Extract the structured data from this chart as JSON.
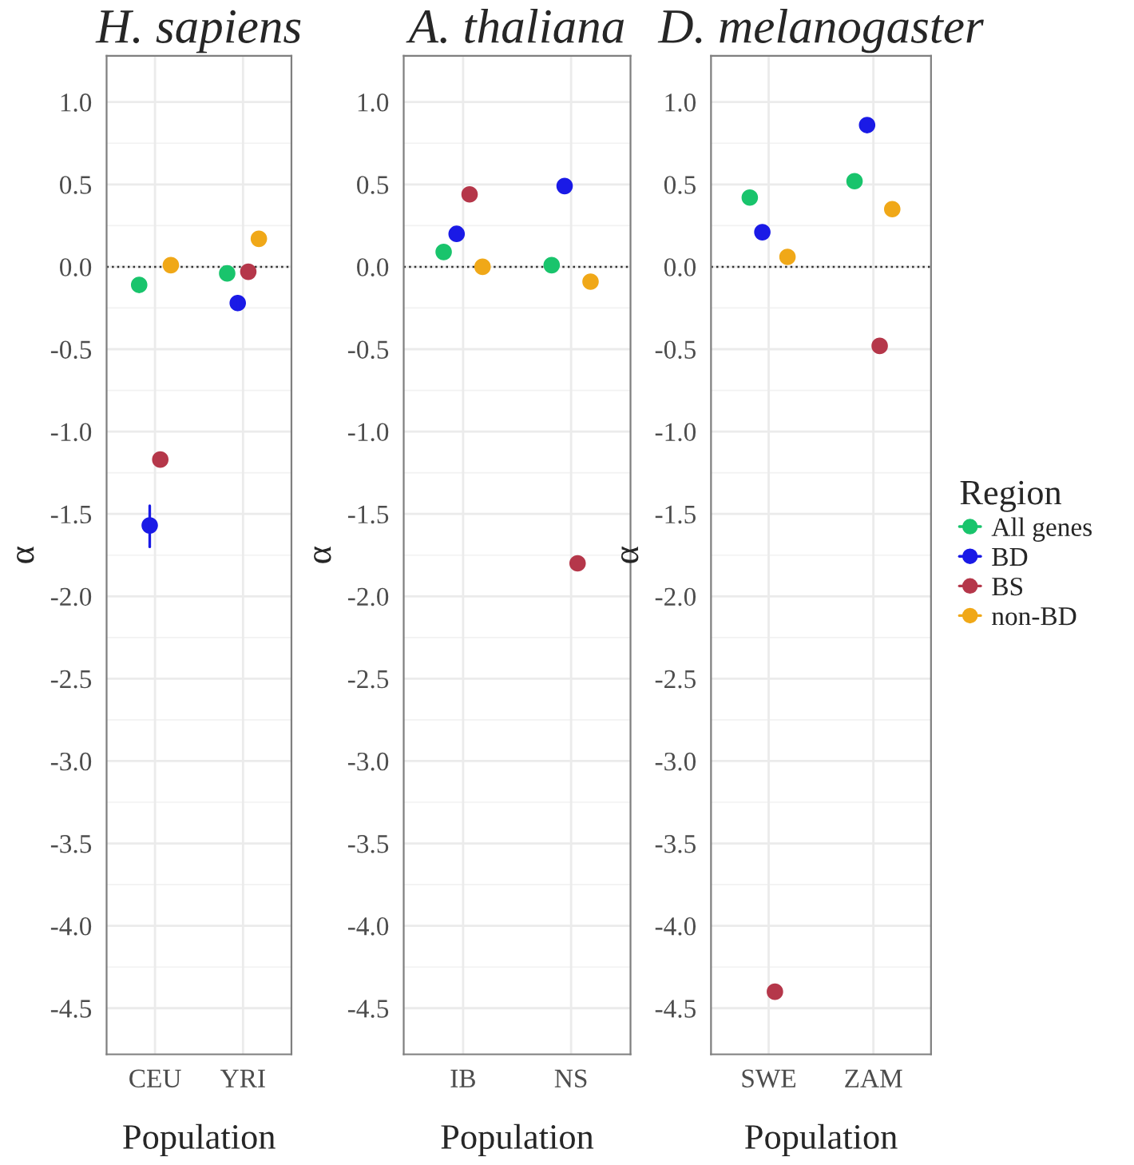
{
  "chart_data": [
    {
      "type": "scatter",
      "title": "H. sapiens",
      "xlabel": "Population",
      "ylabel": "α",
      "categories": [
        "CEU",
        "YRI"
      ],
      "ylim": [
        -4.78,
        1.28
      ],
      "yticks": [
        {
          "value": 1.0,
          "label": "1.0"
        },
        {
          "value": 0.5,
          "label": "0.5"
        },
        {
          "value": 0.0,
          "label": "0.0"
        },
        {
          "value": -0.5,
          "label": "-0.5"
        },
        {
          "value": -1.0,
          "label": "-1.0"
        },
        {
          "value": -1.5,
          "label": "-1.5"
        },
        {
          "value": -2.0,
          "label": "-2.0"
        },
        {
          "value": -2.5,
          "label": "-2.5"
        },
        {
          "value": -3.0,
          "label": "-3.0"
        },
        {
          "value": -3.5,
          "label": "-3.5"
        },
        {
          "value": -4.0,
          "label": "-4.0"
        },
        {
          "value": -4.5,
          "label": "-4.5"
        }
      ],
      "grid": true,
      "marker": "circle",
      "ref_lines": [
        {
          "axis": "y",
          "value": 0,
          "line_style": "dotted"
        }
      ],
      "series": [
        {
          "color": "#19c46c",
          "values": [
            -0.11,
            -0.04
          ]
        },
        {
          "color": "#1a1ae6",
          "values": [
            -1.57,
            -0.22
          ],
          "errors": [
            [
              -1.7,
              -1.45
            ],
            [
              -0.26,
              -0.18
            ]
          ]
        },
        {
          "color": "#b5374a",
          "values": [
            -1.17,
            -0.03
          ]
        },
        {
          "color": "#f0a818",
          "values": [
            0.01,
            0.17
          ]
        }
      ]
    },
    {
      "type": "scatter",
      "title": "A. thaliana",
      "xlabel": "Population",
      "ylabel": "α",
      "categories": [
        "IB",
        "NS"
      ],
      "ylim": [
        -4.78,
        1.28
      ],
      "yticks": [
        {
          "value": 1.0,
          "label": "1.0"
        },
        {
          "value": 0.5,
          "label": "0.5"
        },
        {
          "value": 0.0,
          "label": "0.0"
        },
        {
          "value": -0.5,
          "label": "-0.5"
        },
        {
          "value": -1.0,
          "label": "-1.0"
        },
        {
          "value": -1.5,
          "label": "-1.5"
        },
        {
          "value": -2.0,
          "label": "-2.0"
        },
        {
          "value": -2.5,
          "label": "-2.5"
        },
        {
          "value": -3.0,
          "label": "-3.0"
        },
        {
          "value": -3.5,
          "label": "-3.5"
        },
        {
          "value": -4.0,
          "label": "-4.0"
        },
        {
          "value": -4.5,
          "label": "-4.5"
        }
      ],
      "grid": true,
      "marker": "circle",
      "ref_lines": [
        {
          "axis": "y",
          "value": 0,
          "line_style": "dotted"
        }
      ],
      "series": [
        {
          "color": "#19c46c",
          "values": [
            0.09,
            0.01
          ]
        },
        {
          "color": "#1a1ae6",
          "values": [
            0.2,
            0.49
          ]
        },
        {
          "color": "#b5374a",
          "values": [
            0.44,
            -1.8
          ]
        },
        {
          "color": "#f0a818",
          "values": [
            0.0,
            -0.09
          ]
        }
      ]
    },
    {
      "type": "scatter",
      "title": "D. melanogaster",
      "xlabel": "Population",
      "ylabel": "α",
      "legend_title": "Region",
      "categories": [
        "SWE",
        "ZAM"
      ],
      "ylim": [
        -4.78,
        1.28
      ],
      "yticks": [
        {
          "value": 1.0,
          "label": "1.0"
        },
        {
          "value": 0.5,
          "label": "0.5"
        },
        {
          "value": 0.0,
          "label": "0.0"
        },
        {
          "value": -0.5,
          "label": "-0.5"
        },
        {
          "value": -1.0,
          "label": "-1.0"
        },
        {
          "value": -1.5,
          "label": "-1.5"
        },
        {
          "value": -2.0,
          "label": "-2.0"
        },
        {
          "value": -2.5,
          "label": "-2.5"
        },
        {
          "value": -3.0,
          "label": "-3.0"
        },
        {
          "value": -3.5,
          "label": "-3.5"
        },
        {
          "value": -4.0,
          "label": "-4.0"
        },
        {
          "value": -4.5,
          "label": "-4.5"
        }
      ],
      "grid": true,
      "legend": "right",
      "marker": "circle",
      "ref_lines": [
        {
          "axis": "y",
          "value": 0,
          "line_style": "dotted"
        }
      ],
      "series": [
        {
          "name": "All genes",
          "color": "#19c46c",
          "values": [
            0.42,
            0.52
          ]
        },
        {
          "name": "BD",
          "color": "#1a1ae6",
          "values": [
            0.21,
            0.86
          ]
        },
        {
          "name": "BS",
          "color": "#b5374a",
          "values": [
            -4.4,
            -0.48
          ]
        },
        {
          "name": "non-BD",
          "color": "#f0a818",
          "values": [
            0.06,
            0.35
          ]
        }
      ]
    }
  ]
}
